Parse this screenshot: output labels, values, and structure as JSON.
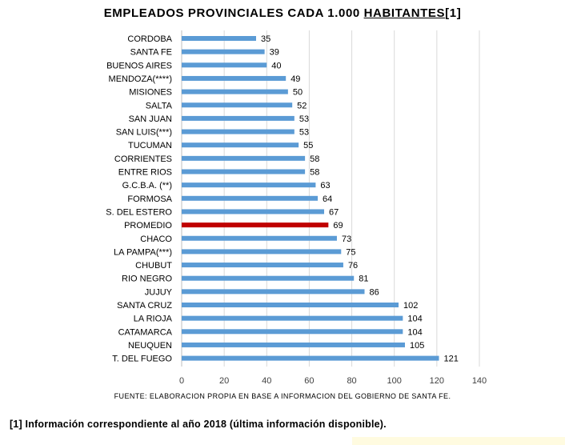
{
  "title_main": "EMPLEADOS  PROVINCIALES  CADA  1.000 ",
  "title_ref": "HABITANTES",
  "title_suffix": "[1]",
  "source": "FUENTE:  ELABORACION   PROPIA  EN  BASE  A INFORMACION   DEL GOBIERNO  DE  SANTA  FE.",
  "footnote": "[1] Información  correspondiente  al año 2018 (última  información   disponible).",
  "colors": {
    "bar": "#5b9bd5",
    "highlight": "#c00000",
    "grid": "#d9d9d9"
  },
  "chart_data": {
    "type": "bar",
    "orientation": "horizontal",
    "categories": [
      "CORDOBA",
      "SANTA FE",
      "BUENOS AIRES",
      "MENDOZA(****)",
      "MISIONES",
      "SALTA",
      "SAN JUAN",
      "SAN LUIS(***)",
      "TUCUMAN",
      "CORRIENTES",
      "ENTRE RIOS",
      "G.C.B.A. (**)",
      "FORMOSA",
      "S. DEL ESTERO",
      "PROMEDIO",
      "CHACO",
      "LA PAMPA(***)",
      "CHUBUT",
      "RIO NEGRO",
      "JUJUY",
      "SANTA CRUZ",
      "LA RIOJA",
      "CATAMARCA",
      "NEUQUEN",
      "T. DEL FUEGO"
    ],
    "values": [
      35,
      39,
      40,
      49,
      50,
      52,
      53,
      53,
      55,
      58,
      58,
      63,
      64,
      67,
      69,
      73,
      75,
      76,
      81,
      86,
      102,
      104,
      104,
      105,
      121
    ],
    "highlight_category": "PROMEDIO",
    "xlim": [
      0,
      140
    ],
    "xticks": [
      0,
      20,
      40,
      60,
      80,
      100,
      120,
      140
    ],
    "grid": true,
    "data_labels": true
  }
}
